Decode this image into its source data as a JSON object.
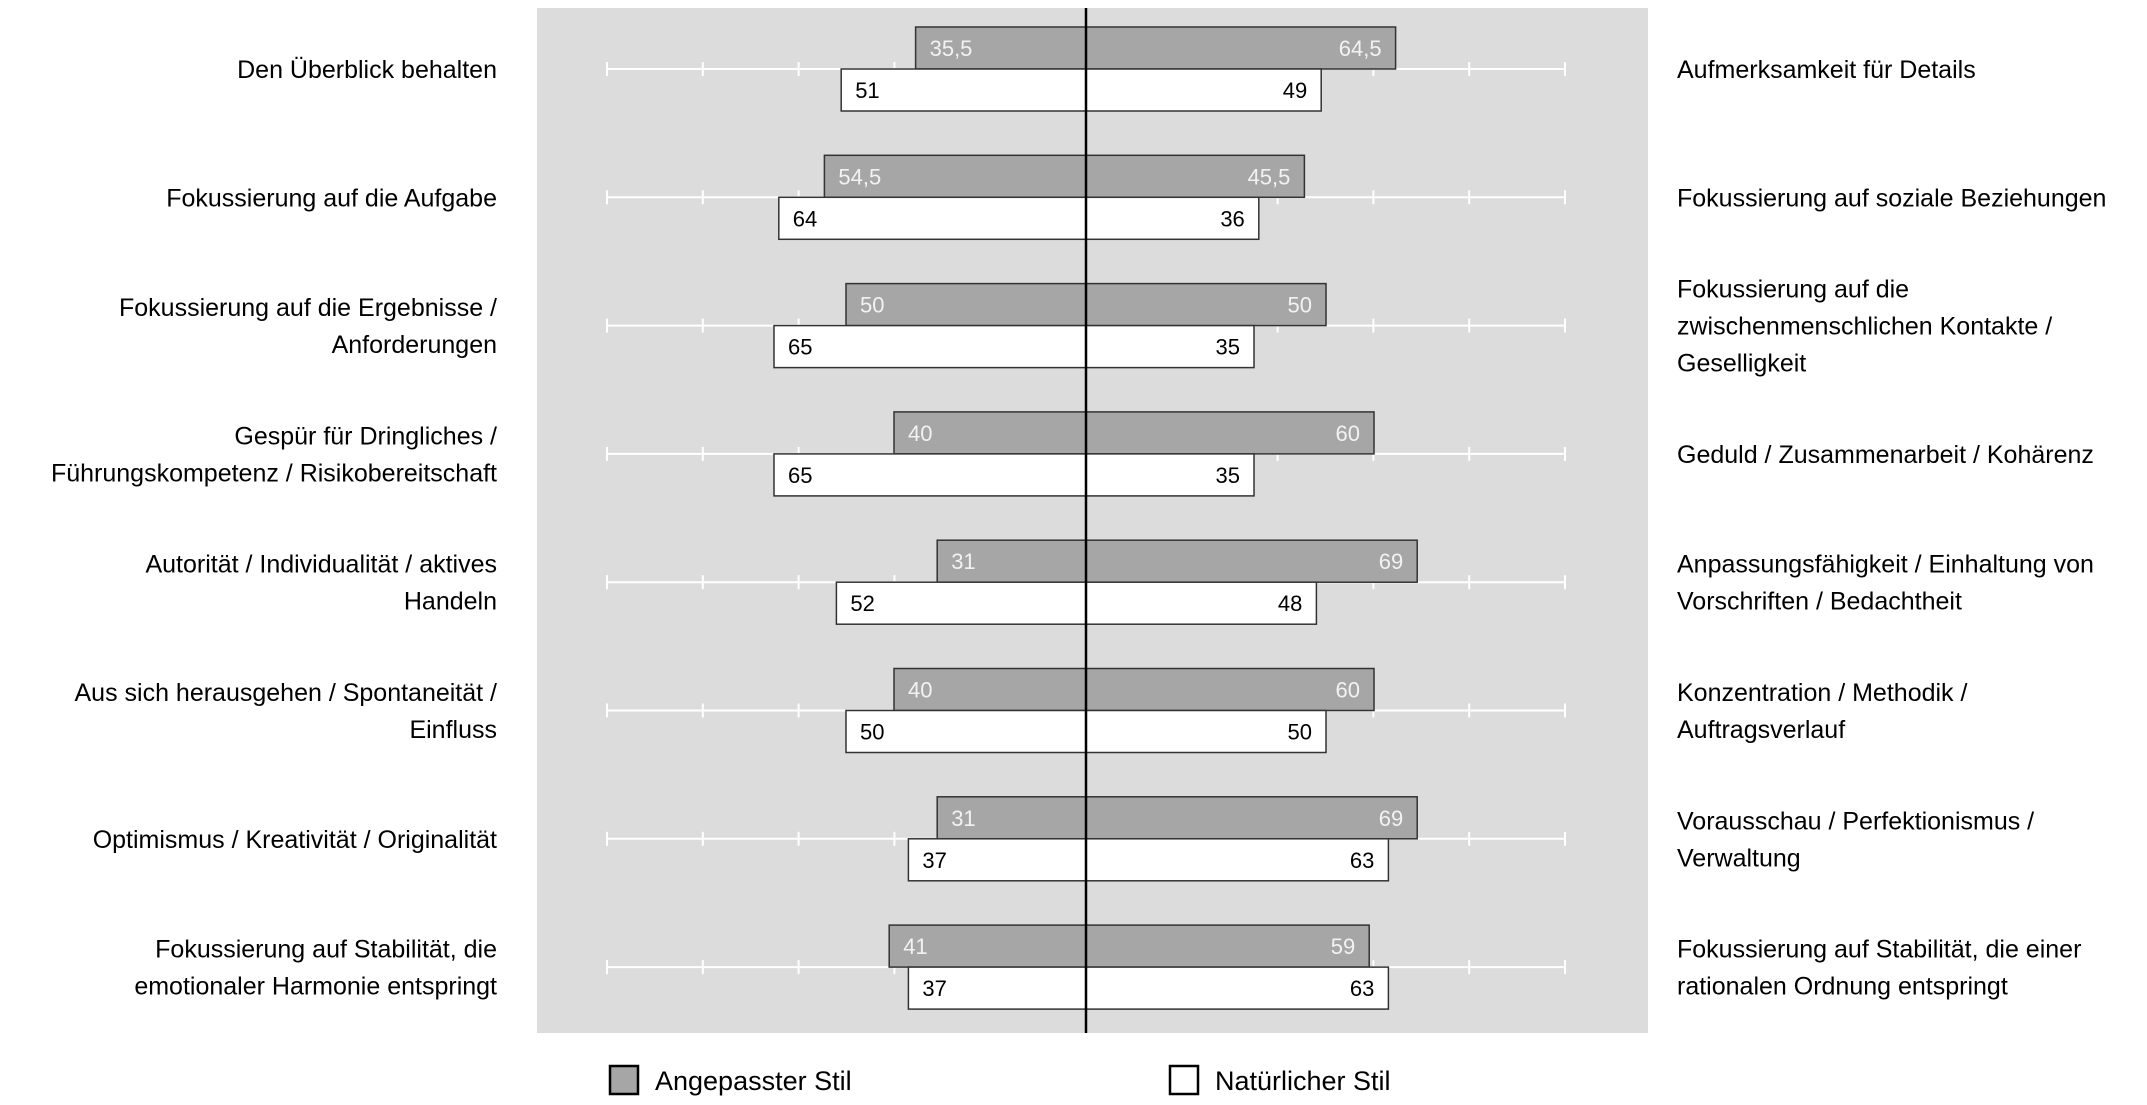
{
  "chart_data": {
    "type": "bar",
    "orientation": "horizontal-diverging",
    "scale_max": 100,
    "grid": false,
    "legend_position": "bottom",
    "colors": {
      "plot_background": "#dcdcdc",
      "adapted_fill": "#a6a6a6",
      "natural_fill": "#ffffff",
      "bar_stroke": "#333333",
      "adapted_label": "#f2f2f2",
      "natural_label": "#000000",
      "center_line": "#000000",
      "tick": "#ffffff"
    },
    "legend": [
      {
        "key": "adapted",
        "label": "Angepasster Stil"
      },
      {
        "key": "natural",
        "label": "Natürlicher Stil"
      }
    ],
    "rows": [
      {
        "left_label": [
          "Den Überblick behalten"
        ],
        "right_label": [
          "Aufmerksamkeit für Details"
        ],
        "adapted": {
          "left": 35.5,
          "right": 64.5,
          "left_text": "35,5",
          "right_text": "64,5"
        },
        "natural": {
          "left": 51,
          "right": 49,
          "left_text": "51",
          "right_text": "49"
        }
      },
      {
        "left_label": [
          "Fokussierung auf die Aufgabe"
        ],
        "right_label": [
          "Fokussierung auf soziale Beziehungen"
        ],
        "adapted": {
          "left": 54.5,
          "right": 45.5,
          "left_text": "54,5",
          "right_text": "45,5"
        },
        "natural": {
          "left": 64,
          "right": 36,
          "left_text": "64",
          "right_text": "36"
        }
      },
      {
        "left_label": [
          "Fokussierung auf die Ergebnisse /",
          "Anforderungen"
        ],
        "right_label": [
          "Fokussierung auf die",
          "zwischenmenschlichen Kontakte /",
          "Geselligkeit"
        ],
        "adapted": {
          "left": 50,
          "right": 50,
          "left_text": "50",
          "right_text": "50"
        },
        "natural": {
          "left": 65,
          "right": 35,
          "left_text": "65",
          "right_text": "35"
        }
      },
      {
        "left_label": [
          "Gespür für Dringliches /",
          "Führungskompetenz / Risikobereitschaft"
        ],
        "right_label": [
          "Geduld / Zusammenarbeit / Kohärenz"
        ],
        "adapted": {
          "left": 40,
          "right": 60,
          "left_text": "40",
          "right_text": "60"
        },
        "natural": {
          "left": 65,
          "right": 35,
          "left_text": "65",
          "right_text": "35"
        }
      },
      {
        "left_label": [
          "Autorität / Individualität / aktives",
          "Handeln"
        ],
        "right_label": [
          "Anpassungsfähigkeit / Einhaltung von",
          "Vorschriften / Bedachtheit"
        ],
        "adapted": {
          "left": 31,
          "right": 69,
          "left_text": "31",
          "right_text": "69"
        },
        "natural": {
          "left": 52,
          "right": 48,
          "left_text": "52",
          "right_text": "48"
        }
      },
      {
        "left_label": [
          "Aus sich herausgehen / Spontaneität /",
          "Einfluss"
        ],
        "right_label": [
          "Konzentration / Methodik /",
          "Auftragsverlauf"
        ],
        "adapted": {
          "left": 40,
          "right": 60,
          "left_text": "40",
          "right_text": "60"
        },
        "natural": {
          "left": 50,
          "right": 50,
          "left_text": "50",
          "right_text": "50"
        }
      },
      {
        "left_label": [
          "Optimismus / Kreativität / Originalität"
        ],
        "right_label": [
          "Vorausschau / Perfektionismus /",
          "Verwaltung"
        ],
        "adapted": {
          "left": 31,
          "right": 69,
          "left_text": "31",
          "right_text": "69"
        },
        "natural": {
          "left": 37,
          "right": 63,
          "left_text": "37",
          "right_text": "63"
        }
      },
      {
        "left_label": [
          "Fokussierung auf Stabilität, die",
          "emotionaler Harmonie entspringt"
        ],
        "right_label": [
          "Fokussierung auf Stabilität, die einer",
          "rationalen Ordnung entspringt"
        ],
        "adapted": {
          "left": 41,
          "right": 59,
          "left_text": "41",
          "right_text": "59"
        },
        "natural": {
          "left": 37,
          "right": 63,
          "left_text": "37",
          "right_text": "63"
        }
      }
    ]
  }
}
